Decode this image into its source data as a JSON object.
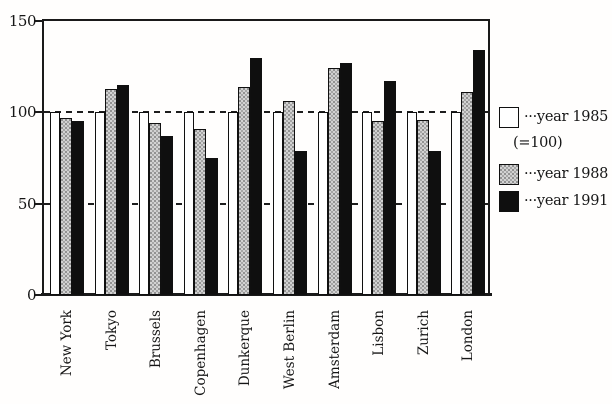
{
  "figure": {
    "background": "#fffefd",
    "description": "Grouped bar chart comparing an index (1985=100) for ten cities in 1985, 1988 and 1991"
  },
  "legend": {
    "entries": [
      {
        "id": "year-1985",
        "label": "···year 1985",
        "sublabel": "(=100)",
        "swatch": "white"
      },
      {
        "id": "year-1988",
        "label": "···year 1988",
        "swatch": "gray"
      },
      {
        "id": "year-1991",
        "label": "···year 1991",
        "swatch": "black"
      }
    ]
  },
  "colors": {
    "axis": "#1a1a1a",
    "grid": "#1d1d1d",
    "bar_1985": "#ffffff",
    "bar_1988": "#d2d2d2",
    "bar_1991": "#0f0f0f"
  },
  "chart_data": {
    "type": "bar",
    "title": "",
    "xlabel": "",
    "ylabel": "",
    "ylim": [
      0,
      150
    ],
    "yticks": [
      150,
      100,
      50,
      0
    ],
    "gridlines": {
      "style": "dashed",
      "at": [
        100,
        50
      ]
    },
    "grid": true,
    "legend_position": "right",
    "categories": [
      "New York",
      "Tokyo",
      "Brussels",
      "Copenhagen",
      "Dunkerque",
      "West Berlin",
      "Amsterdam",
      "Lisbon",
      "Zurich",
      "London"
    ],
    "series": [
      {
        "name": "year 1985 (=100)",
        "year": 1985,
        "color": "#ffffff",
        "values": [
          100,
          100,
          100,
          100,
          100,
          100,
          100,
          100,
          100,
          100
        ]
      },
      {
        "name": "year 1988",
        "year": 1988,
        "color": "#d2d2d2",
        "values": [
          97,
          113,
          94,
          91,
          114,
          106,
          124,
          95,
          96,
          111
        ]
      },
      {
        "name": "year 1991",
        "year": 1991,
        "color": "#0f0f0f",
        "values": [
          95,
          115,
          87,
          75,
          130,
          79,
          127,
          117,
          79,
          134
        ]
      }
    ]
  }
}
